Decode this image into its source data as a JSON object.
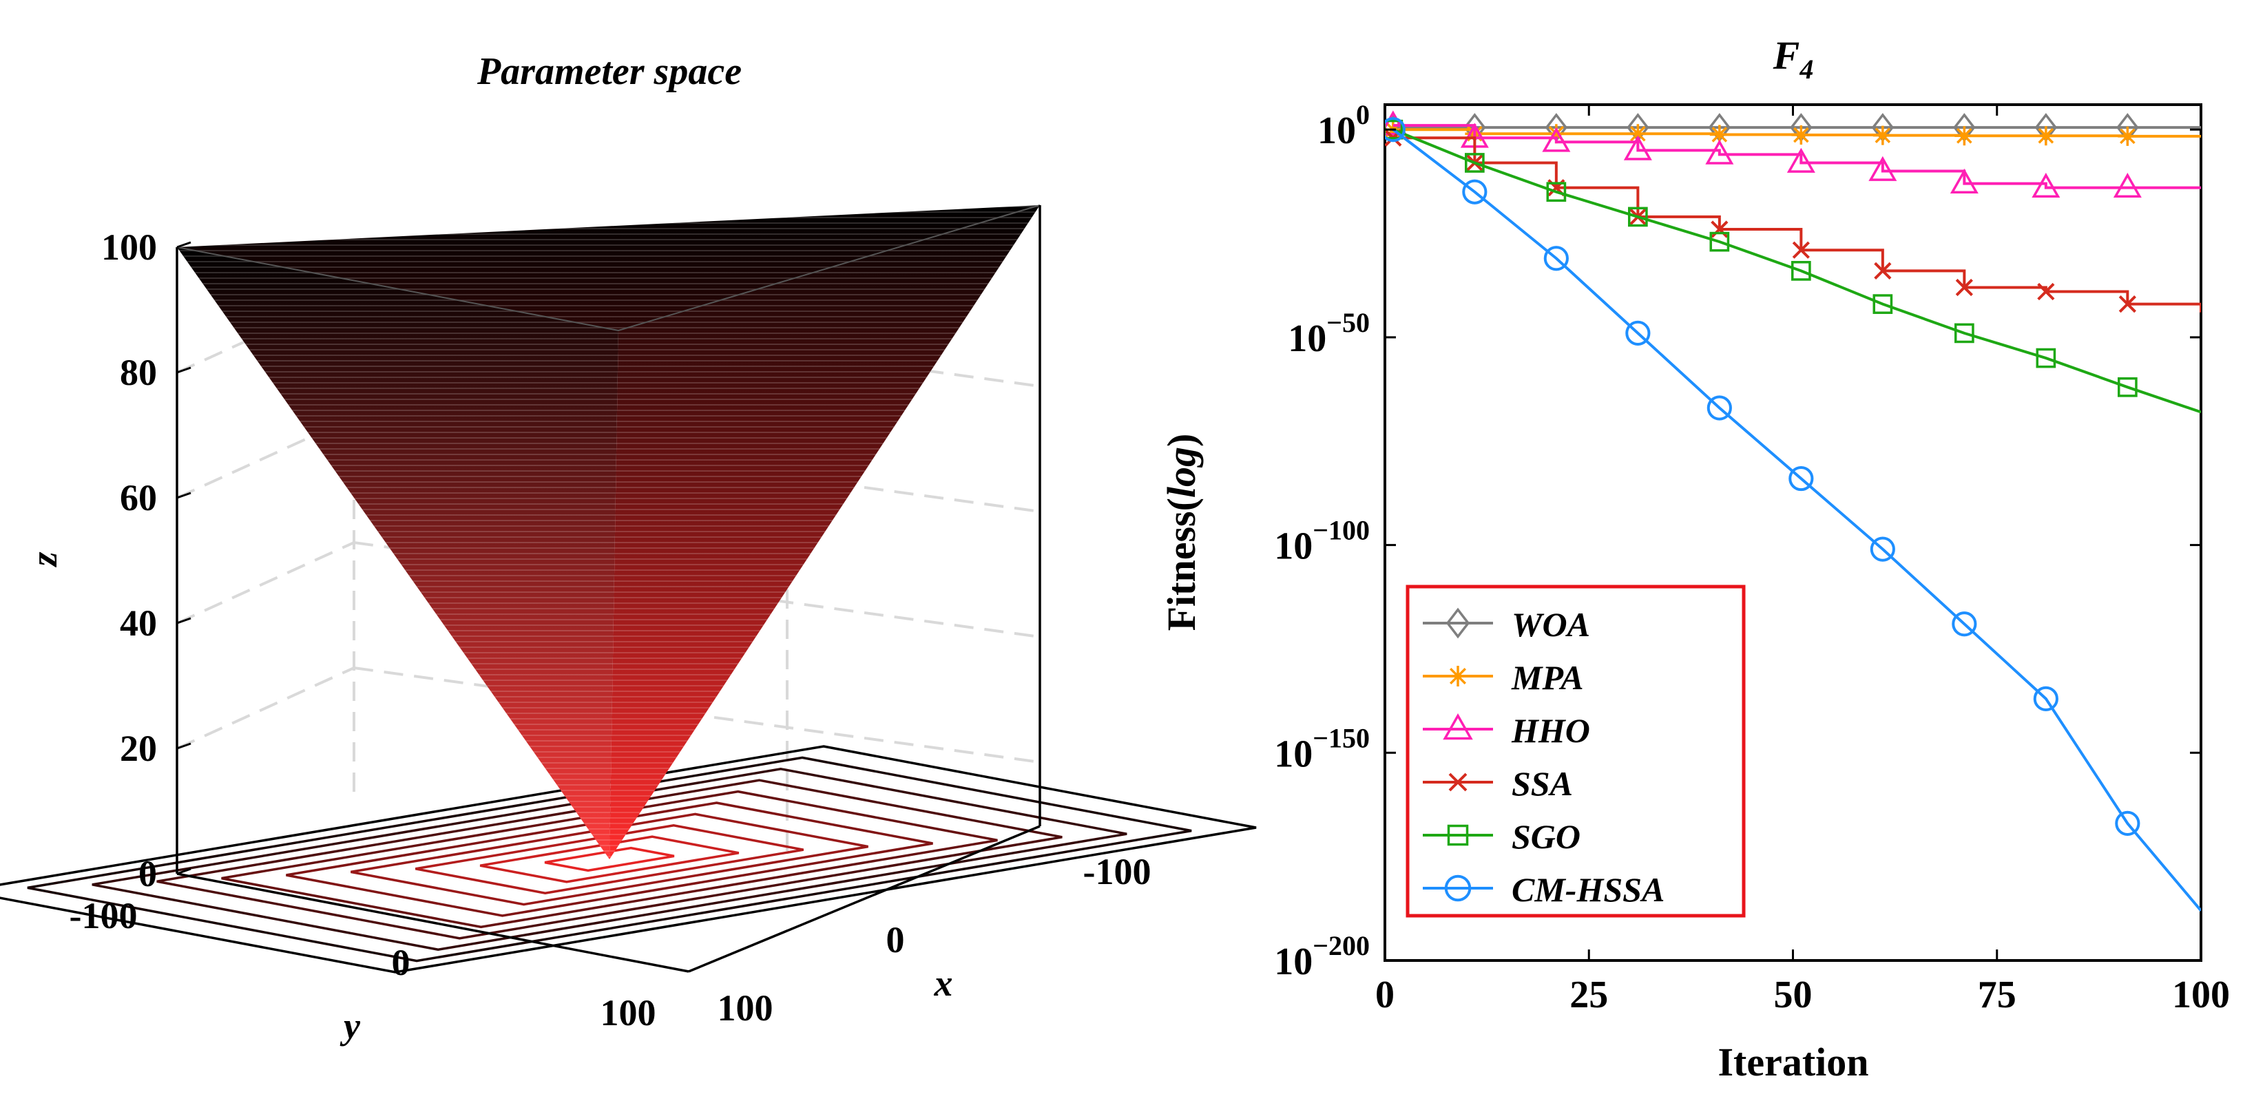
{
  "chart_data": [
    {
      "type": "surface3d",
      "title": "Parameter space",
      "xlabel": "x",
      "ylabel": "y",
      "zlabel": "z",
      "x_ticks": [
        "-100",
        "0",
        "100"
      ],
      "y_ticks": [
        "-100",
        "0",
        "100"
      ],
      "z_ticks": [
        "0",
        "20",
        "40",
        "60",
        "80",
        "100"
      ],
      "xlim": [
        -100,
        100
      ],
      "ylim": [
        -100,
        100
      ],
      "zlim": [
        0,
        100
      ],
      "function": "z = max(|x|, |y|)",
      "contour_levels": 10,
      "grid": true,
      "colors": {
        "top": "#000000",
        "bottom": "#ff3b3b"
      }
    },
    {
      "type": "line",
      "title": "F",
      "title_subscript": "4",
      "xlabel": "Iteration",
      "ylabel_main": "Fitness(",
      "ylabel_italic": "log",
      "ylabel_close": ")",
      "y_scale": "log",
      "xlim": [
        0,
        100
      ],
      "ylim_exponent": [
        -200,
        0
      ],
      "x_ticks": [
        "0",
        "25",
        "50",
        "75",
        "100"
      ],
      "y_tick_base": "10",
      "y_tick_exponents": [
        "0",
        "−50",
        "−100",
        "−150",
        "−200"
      ],
      "legend_position": "bottom-left",
      "legend_border_color": "#e8141b",
      "note": "y values are base-10 exponents of fitness",
      "series": [
        {
          "name": "WOA",
          "color": "#7f7f7f",
          "marker": "diamond",
          "x": [
            1,
            11,
            21,
            31,
            41,
            51,
            61,
            71,
            81,
            91,
            100
          ],
          "y": [
            0.5,
            0.5,
            0.5,
            0.5,
            0.5,
            0.5,
            0.5,
            0.5,
            0.5,
            0.5,
            0.5
          ]
        },
        {
          "name": "MPA",
          "color": "#ff9a00",
          "marker": "asterisk",
          "x": [
            1,
            11,
            21,
            31,
            41,
            51,
            61,
            71,
            81,
            91,
            100
          ],
          "y": [
            0,
            -1,
            -1,
            -1,
            -1.2,
            -1.3,
            -1.4,
            -1.5,
            -1.5,
            -1.6,
            -1.6
          ]
        },
        {
          "name": "HHO",
          "color": "#ff1fb4",
          "marker": "triangle",
          "x": [
            1,
            11,
            21,
            31,
            41,
            51,
            61,
            71,
            81,
            91,
            100
          ],
          "y": [
            1,
            -2,
            -3,
            -5,
            -6,
            -8,
            -10,
            -13,
            -14,
            -14,
            -14
          ]
        },
        {
          "name": "SSA",
          "color": "#d52b1e",
          "marker": "x",
          "x": [
            1,
            11,
            21,
            31,
            41,
            51,
            61,
            71,
            81,
            91,
            100
          ],
          "y": [
            -2,
            -8,
            -14,
            -21,
            -24,
            -29,
            -34,
            -38,
            -39,
            -42,
            -44
          ]
        },
        {
          "name": "SGO",
          "color": "#1ea814",
          "marker": "square",
          "x": [
            1,
            11,
            21,
            31,
            41,
            51,
            61,
            71,
            81,
            91,
            100
          ],
          "y": [
            0,
            -8,
            -15,
            -21,
            -27,
            -34,
            -42,
            -49,
            -55,
            -62,
            -68
          ]
        },
        {
          "name": "CM-HSSA",
          "color": "#1e8fff",
          "marker": "circle",
          "x": [
            1,
            11,
            21,
            31,
            41,
            51,
            61,
            71,
            81,
            91,
            100
          ],
          "y": [
            0,
            -15,
            -31,
            -49,
            -67,
            -84,
            -101,
            -119,
            -137,
            -167,
            -188
          ]
        }
      ]
    }
  ]
}
